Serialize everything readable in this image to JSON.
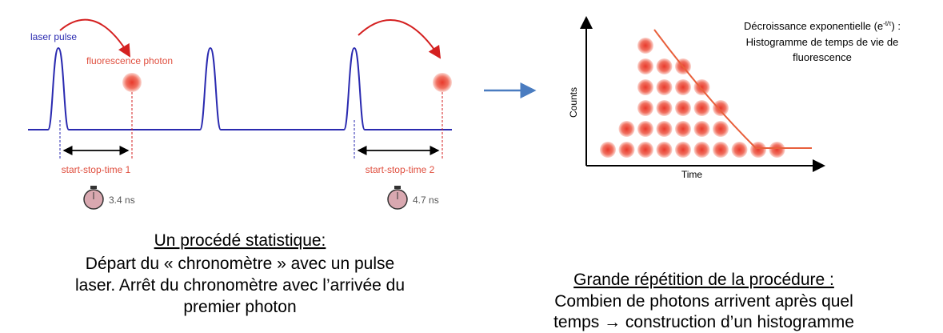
{
  "left_diagram": {
    "laser_label": "laser pulse",
    "photon_label": "fluorescence photon",
    "time_labels": [
      "start-stop-time 1",
      "start-stop-time 2"
    ],
    "durations": [
      "3.4 ns",
      "4.7 ns"
    ]
  },
  "right_diagram": {
    "y_label": "Counts",
    "x_label": "Time",
    "annotation": {
      "text": "Décroissance exponentielle (e",
      "superscript": "-t/τ",
      "suffix": ") :",
      "lines": [
        "Histogramme de temps de vie de",
        "fluorescence"
      ]
    }
  },
  "left_caption": {
    "title": "Un procédé statistique:",
    "lines": [
      "Départ du « chronomètre » avec un pulse",
      "laser. Arrêt du chronomètre avec l’arrivée du",
      "premier photon"
    ]
  },
  "right_caption": {
    "title": "Grande répétition de la procédure :",
    "lines": [
      "Combien de photons arrivent après quel",
      "temps → construction d’un histogramme"
    ]
  }
}
